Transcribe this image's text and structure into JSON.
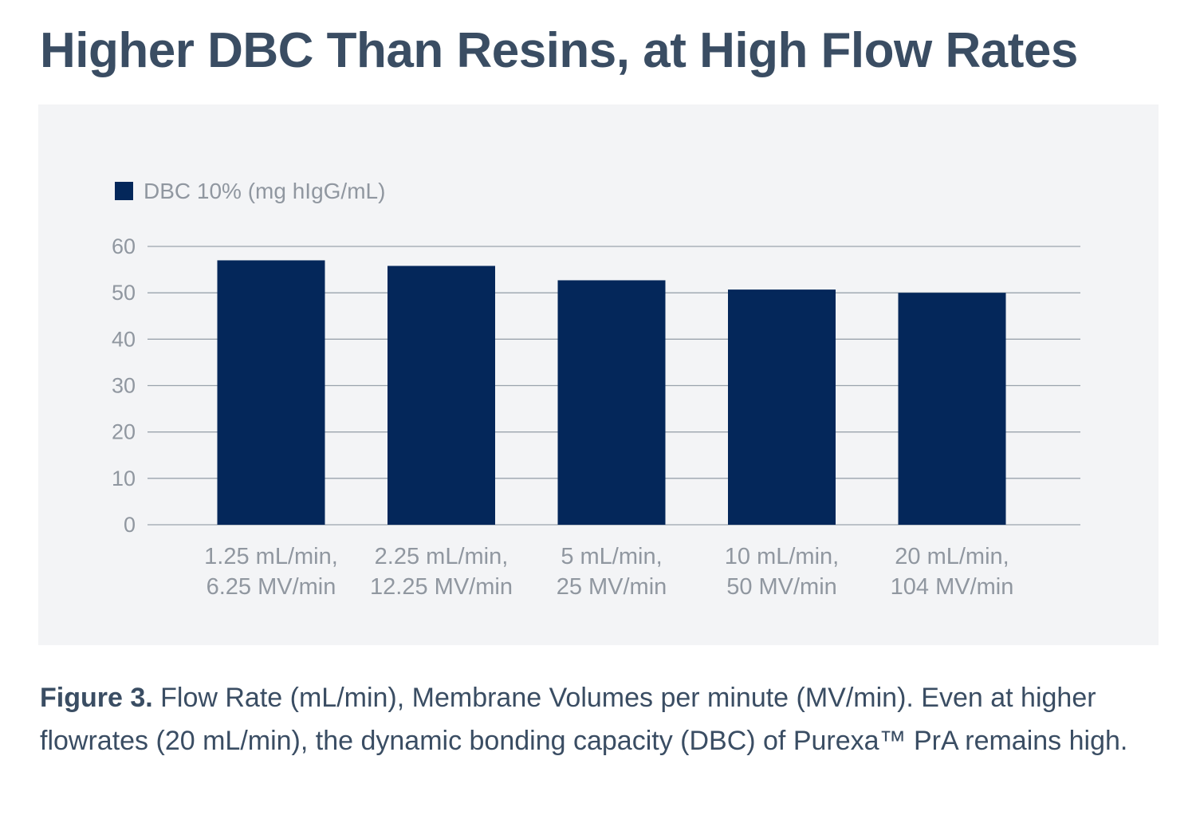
{
  "title": "Higher DBC Than Resins, at High Flow Rates",
  "caption": {
    "figure_label": "Figure 3.",
    "text": " Flow Rate (mL/min), Membrane Volumes per minute (MV/min). Even at higher flowrates (20 mL/min), the dynamic bonding capacity (DBC) of Purexa™ PrA remains high."
  },
  "colors": {
    "bar": "#04275a",
    "grid": "#9aa3ad",
    "panel": "#f3f4f6",
    "title": "#3a4d63",
    "tick": "#9097a0"
  },
  "chart_data": {
    "type": "bar",
    "title": "",
    "xlabel": "",
    "ylabel": "",
    "categories": [
      [
        "1.25 mL/min,",
        "6.25 MV/min"
      ],
      [
        "2.25 mL/min,",
        "12.25 MV/min"
      ],
      [
        "5 mL/min,",
        "25 MV/min"
      ],
      [
        "10 mL/min,",
        "50 MV/min"
      ],
      [
        "20 mL/min,",
        "104 MV/min"
      ]
    ],
    "series": [
      {
        "name": "DBC 10% (mg hIgG/mL)",
        "values": [
          57,
          55.8,
          52.7,
          50.7,
          50
        ]
      }
    ],
    "ylim": [
      0,
      60
    ],
    "yticks": [
      0,
      10,
      20,
      30,
      40,
      50,
      60
    ],
    "grid": true,
    "legend_position": "top-left"
  }
}
